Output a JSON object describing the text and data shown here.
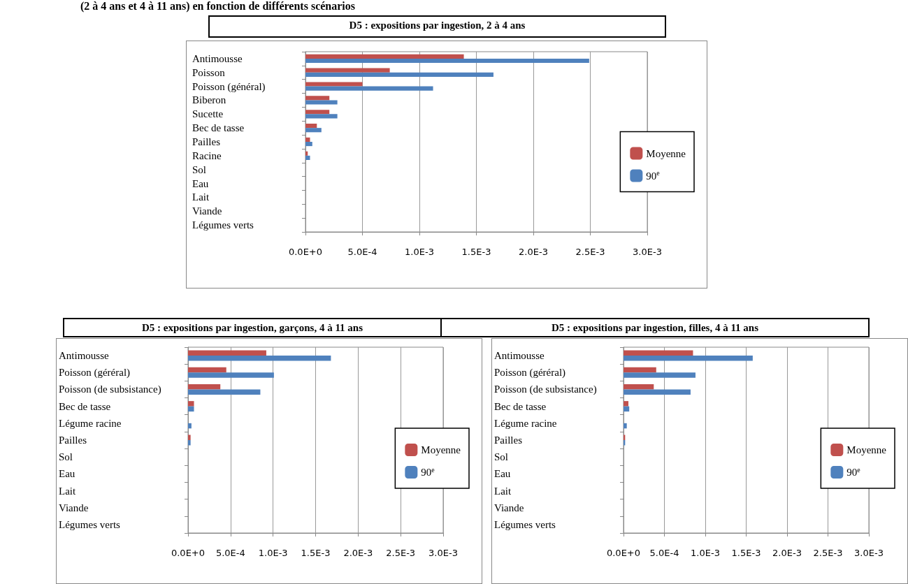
{
  "chart_data": [
    {
      "type": "bar",
      "orientation": "horizontal",
      "title": "D5 : expositions par ingestion, 2 à 4 ans",
      "annotations": [
        "(2 à 4 ans et 4 à 11 ans) en fonction de différents scénarios"
      ],
      "categories": [
        "Antimousse",
        "Poisson",
        "Poisson (général)",
        "Biberon",
        "Sucette",
        "Bec de tasse",
        "Pailles",
        "Racine",
        "Sol",
        "Eau",
        "Lait",
        "Viande",
        "Légumes verts"
      ],
      "series": [
        {
          "name": "Moyenne",
          "color": "#c0504d",
          "values": [
            0.00139,
            0.00074,
            0.0005,
            0.00021,
            0.00021,
            0.0001,
            4e-05,
            2e-05,
            0,
            0,
            0,
            0,
            0
          ]
        },
        {
          "name": "90$^{e}$",
          "color": "#4f81bd",
          "values": [
            0.00249,
            0.00165,
            0.00112,
            0.00028,
            0.00028,
            0.00014,
            6e-05,
            4e-05,
            0,
            0,
            0,
            0,
            0
          ]
        }
      ],
      "xlim": [
        0,
        0.003
      ],
      "xticks": [
        {
          "value": 0,
          "label": "0.0E+0"
        },
        {
          "value": 0.0005,
          "label": "5.0E-4"
        },
        {
          "value": 0.001,
          "label": "1.0E-3"
        },
        {
          "value": 0.0015,
          "label": "1.5E-3"
        },
        {
          "value": 0.002,
          "label": "2.0E-3"
        },
        {
          "value": 0.0025,
          "label": "2.5E-3"
        },
        {
          "value": 0.003,
          "label": "3.0E-3"
        }
      ],
      "grid": "x",
      "legend": "right"
    },
    {
      "type": "bar",
      "orientation": "horizontal",
      "title": "D5 : expositions par ingestion, garçons, 4 à 11 ans",
      "categories": [
        "Antimousse",
        "Poisson (géréral)",
        "Poisson (de subsistance)",
        "Bec de tasse",
        "Légume racine",
        "Pailles",
        "Sol",
        "Eau",
        "Lait",
        "Viande",
        "Légumes verts"
      ],
      "series": [
        {
          "name": "Moyenne",
          "color": "#c0504d",
          "values": [
            0.00092,
            0.00045,
            0.00038,
            7e-05,
            0,
            3e-05,
            0,
            0,
            0,
            0,
            0
          ]
        },
        {
          "name": "90$^{e}$",
          "color": "#4f81bd",
          "values": [
            0.00168,
            0.00101,
            0.00085,
            7e-05,
            4e-05,
            3e-05,
            0,
            0,
            0,
            0,
            0
          ]
        }
      ],
      "xlim": [
        0,
        0.003
      ],
      "xticks": [
        {
          "value": 0,
          "label": "0.0E+0"
        },
        {
          "value": 0.0005,
          "label": "5.0E-4"
        },
        {
          "value": 0.001,
          "label": "1.0E-3"
        },
        {
          "value": 0.0015,
          "label": "1.5E-3"
        },
        {
          "value": 0.002,
          "label": "2.0E-3"
        },
        {
          "value": 0.0025,
          "label": "2.5E-3"
        },
        {
          "value": 0.003,
          "label": "3.0E-3"
        }
      ],
      "grid": "x",
      "legend": "right"
    },
    {
      "type": "bar",
      "orientation": "horizontal",
      "title": "D5 : expositions par ingestion, filles, 4 à 11 ans",
      "categories": [
        "Antimousse",
        "Poisson (géréral)",
        "Poisson (de subsistance)",
        "Bec de tasse",
        "Légume racine",
        "Pailles",
        "Sol",
        "Eau",
        "Lait",
        "Viande",
        "Légumes verts"
      ],
      "series": [
        {
          "name": "Moyenne",
          "color": "#c0504d",
          "values": [
            0.00085,
            0.0004,
            0.00037,
            6e-05,
            0,
            2e-05,
            0,
            0,
            0,
            0,
            0
          ]
        },
        {
          "name": "90$^{e}$",
          "color": "#4f81bd",
          "values": [
            0.00158,
            0.00088,
            0.00082,
            7e-05,
            4e-05,
            2e-05,
            0,
            0,
            0,
            0,
            0
          ]
        }
      ],
      "xlim": [
        0,
        0.003
      ],
      "xticks": [
        {
          "value": 0,
          "label": "0.0E+0"
        },
        {
          "value": 0.0005,
          "label": "5.0E-4"
        },
        {
          "value": 0.001,
          "label": "1.0E-3"
        },
        {
          "value": 0.0015,
          "label": "1.5E-3"
        },
        {
          "value": 0.002,
          "label": "2.0E-3"
        },
        {
          "value": 0.0025,
          "label": "2.5E-3"
        },
        {
          "value": 0.003,
          "label": "3.0E-3"
        }
      ],
      "grid": "x",
      "legend": "right"
    }
  ]
}
